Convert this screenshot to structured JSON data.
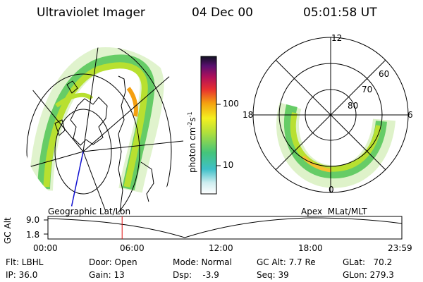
{
  "header": {
    "instrument": "Ultraviolet Imager",
    "date": "04 Dec 00",
    "time": "05:01:58 UT"
  },
  "colorbar": {
    "ticks": [
      "100",
      "10"
    ],
    "units_label": "photon cm",
    "units_exp1": "-2",
    "units_s": "s",
    "units_exp2": "-1"
  },
  "left_map": {
    "label": "Geographic Lat/Lon"
  },
  "right_map": {
    "label": "Apex  MLat/MLT",
    "mlt_labels": {
      "top": "12",
      "left": "18",
      "right": "6",
      "bottom": "0"
    },
    "lat_labels": [
      "80",
      "70",
      "60"
    ]
  },
  "timeline": {
    "ylabel": "GC Alt",
    "yticks": [
      "9.0",
      "1.8"
    ],
    "xticks": [
      "00:00",
      "06:00",
      "12:00",
      "18:00",
      "23:59"
    ],
    "marker_hours": 5.03
  },
  "status": {
    "flt": "Flt: LBHL",
    "ip": "IP: 36.0",
    "door": "Door: Open",
    "gain": "Gain: 13",
    "mode": "Mode: Normal",
    "dsp": "Dsp:    -3.9",
    "gcalt": "GC Alt: 7.7 Re",
    "seq": "Seq: 39",
    "glat": "GLat:   70.2",
    "glon": "GLon: 279.3"
  }
}
